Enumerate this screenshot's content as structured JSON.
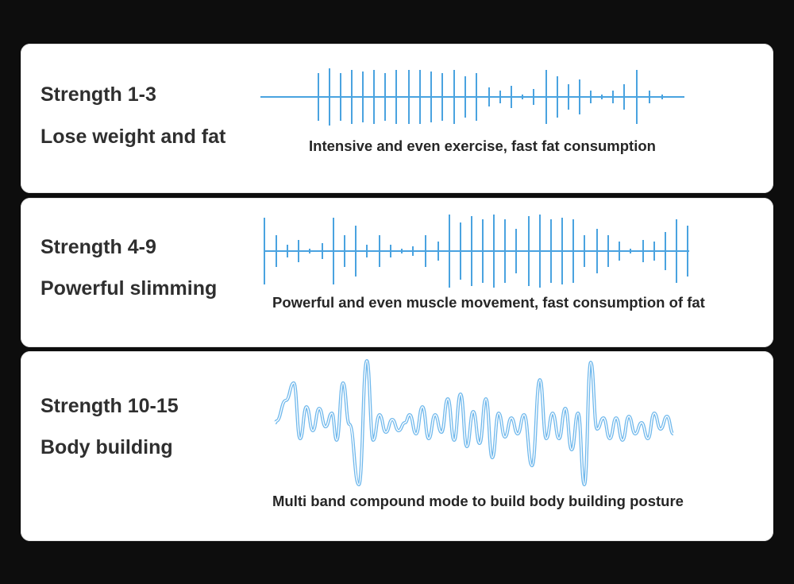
{
  "colors": {
    "background": "#0d0d0d",
    "card": "#ffffff",
    "text": "#2f2f2f",
    "wave": "#4aa3e0",
    "wave_light": "#7ec0ee"
  },
  "modes": [
    {
      "strength": "Strength 1-3",
      "name": "Lose weight and fat",
      "description": "Intensive and even exercise, fast fat consumption"
    },
    {
      "strength": "Strength 4-9",
      "name": "Powerful slimming",
      "description": "Powerful and even muscle movement, fast consumption of fat"
    },
    {
      "strength": "Strength 10-15",
      "name": "Body building",
      "description": "Multi band compound mode to build body building posture"
    }
  ]
}
